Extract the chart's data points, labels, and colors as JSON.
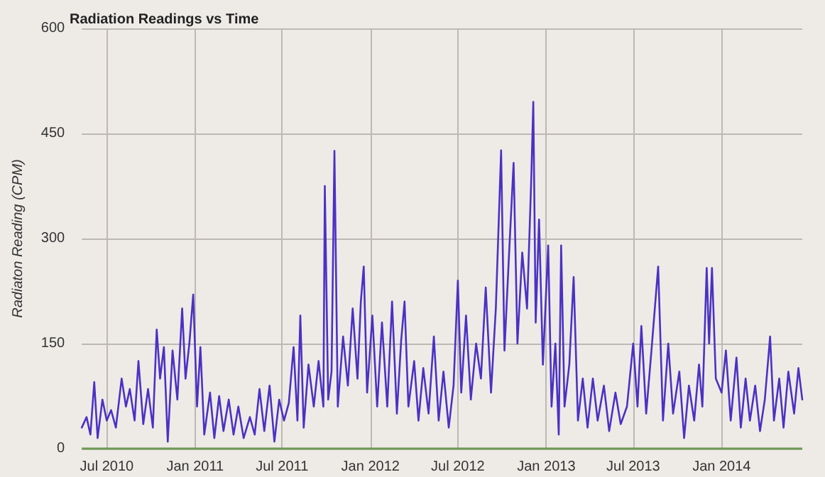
{
  "chart_data": {
    "type": "line",
    "title": "Radiation Readings vs Time",
    "ylabel": "Radiaton Reading (CPM)",
    "xlim": [
      "2010-05-10",
      "2014-06-18"
    ],
    "xticks": [
      {
        "value": "2010-07-01",
        "label": "Jul 2010"
      },
      {
        "value": "2011-01-01",
        "label": "Jan 2011"
      },
      {
        "value": "2011-07-01",
        "label": "Jul 2011"
      },
      {
        "value": "2012-01-01",
        "label": "Jan 2012"
      },
      {
        "value": "2012-07-01",
        "label": "Jul 2012"
      },
      {
        "value": "2013-01-01",
        "label": "Jan 2013"
      },
      {
        "value": "2013-07-01",
        "label": "Jul 2013"
      },
      {
        "value": "2014-01-01",
        "label": "Jan 2014"
      }
    ],
    "ylim": [
      0,
      600
    ],
    "yticks": [
      0,
      150,
      300,
      450,
      600
    ],
    "grid": true,
    "marker": "none",
    "line_style": "solid",
    "x": [
      "2010-05-10",
      "2010-05-20",
      "2010-05-28",
      "2010-06-05",
      "2010-06-12",
      "2010-06-22",
      "2010-07-01",
      "2010-07-10",
      "2010-07-20",
      "2010-08-01",
      "2010-08-10",
      "2010-08-18",
      "2010-08-28",
      "2010-09-05",
      "2010-09-15",
      "2010-09-25",
      "2010-10-05",
      "2010-10-13",
      "2010-10-20",
      "2010-10-28",
      "2010-11-05",
      "2010-11-15",
      "2010-11-25",
      "2010-12-05",
      "2010-12-12",
      "2010-12-20",
      "2010-12-28",
      "2011-01-05",
      "2011-01-12",
      "2011-01-20",
      "2011-02-01",
      "2011-02-10",
      "2011-02-20",
      "2011-03-01",
      "2011-03-12",
      "2011-03-22",
      "2011-04-01",
      "2011-04-12",
      "2011-04-25",
      "2011-05-05",
      "2011-05-15",
      "2011-05-25",
      "2011-06-05",
      "2011-06-15",
      "2011-06-25",
      "2011-07-05",
      "2011-07-15",
      "2011-07-25",
      "2011-08-02",
      "2011-08-08",
      "2011-08-15",
      "2011-08-25",
      "2011-09-05",
      "2011-09-15",
      "2011-09-25",
      "2011-09-28",
      "2011-10-05",
      "2011-10-12",
      "2011-10-18",
      "2011-10-25",
      "2011-11-05",
      "2011-11-15",
      "2011-11-25",
      "2011-12-05",
      "2011-12-12",
      "2011-12-18",
      "2011-12-25",
      "2012-01-05",
      "2012-01-15",
      "2012-01-25",
      "2012-02-05",
      "2012-02-15",
      "2012-02-25",
      "2012-03-05",
      "2012-03-12",
      "2012-03-20",
      "2012-04-01",
      "2012-04-10",
      "2012-04-20",
      "2012-05-01",
      "2012-05-12",
      "2012-05-22",
      "2012-06-01",
      "2012-06-12",
      "2012-06-22",
      "2012-07-01",
      "2012-07-08",
      "2012-07-18",
      "2012-07-28",
      "2012-08-08",
      "2012-08-18",
      "2012-08-28",
      "2012-09-08",
      "2012-09-18",
      "2012-09-29",
      "2012-10-06",
      "2012-10-15",
      "2012-10-25",
      "2012-11-02",
      "2012-11-12",
      "2012-11-22",
      "2012-12-01",
      "2012-12-05",
      "2012-12-10",
      "2012-12-17",
      "2012-12-25",
      "2013-01-05",
      "2013-01-12",
      "2013-01-20",
      "2013-01-27",
      "2013-02-01",
      "2013-02-08",
      "2013-02-18",
      "2013-02-27",
      "2013-03-08",
      "2013-03-18",
      "2013-03-28",
      "2013-04-08",
      "2013-04-18",
      "2013-05-01",
      "2013-05-12",
      "2013-05-25",
      "2013-06-05",
      "2013-06-18",
      "2013-07-01",
      "2013-07-10",
      "2013-07-18",
      "2013-07-28",
      "2013-08-08",
      "2013-08-22",
      "2013-09-01",
      "2013-09-12",
      "2013-09-22",
      "2013-10-05",
      "2013-10-15",
      "2013-10-25",
      "2013-11-05",
      "2013-11-15",
      "2013-11-22",
      "2013-12-01",
      "2013-12-06",
      "2013-12-12",
      "2013-12-20",
      "2014-01-01",
      "2014-01-10",
      "2014-01-20",
      "2014-02-01",
      "2014-02-10",
      "2014-02-20",
      "2014-03-01",
      "2014-03-12",
      "2014-03-22",
      "2014-04-01",
      "2014-04-12",
      "2014-04-20",
      "2014-05-01",
      "2014-05-10",
      "2014-05-20",
      "2014-06-01",
      "2014-06-10",
      "2014-06-18"
    ],
    "series": [
      {
        "color": "#4a32c4",
        "values": [
          30,
          45,
          20,
          95,
          15,
          70,
          40,
          55,
          30,
          100,
          60,
          85,
          40,
          125,
          35,
          85,
          30,
          170,
          100,
          145,
          10,
          140,
          70,
          200,
          100,
          150,
          220,
          60,
          145,
          20,
          80,
          15,
          75,
          25,
          70,
          20,
          60,
          15,
          45,
          20,
          85,
          25,
          90,
          10,
          70,
          40,
          65,
          145,
          40,
          190,
          30,
          120,
          60,
          125,
          60,
          375,
          70,
          110,
          425,
          60,
          160,
          90,
          200,
          100,
          210,
          260,
          80,
          190,
          60,
          180,
          60,
          210,
          50,
          155,
          210,
          60,
          125,
          40,
          115,
          50,
          160,
          40,
          110,
          30,
          90,
          240,
          80,
          190,
          70,
          150,
          100,
          230,
          80,
          200,
          426,
          140,
          270,
          408,
          150,
          280,
          200,
          390,
          495,
          180,
          327,
          120,
          290,
          60,
          150,
          20,
          290,
          60,
          120,
          245,
          40,
          100,
          30,
          100,
          40,
          90,
          25,
          80,
          35,
          60,
          150,
          60,
          175,
          50,
          140,
          260,
          40,
          150,
          50,
          110,
          15,
          90,
          40,
          120,
          60,
          258,
          150,
          258,
          100,
          80,
          140,
          40,
          130,
          30,
          100,
          40,
          90,
          25,
          70,
          160,
          40,
          100,
          30,
          110,
          50,
          115,
          70
        ]
      }
    ]
  }
}
